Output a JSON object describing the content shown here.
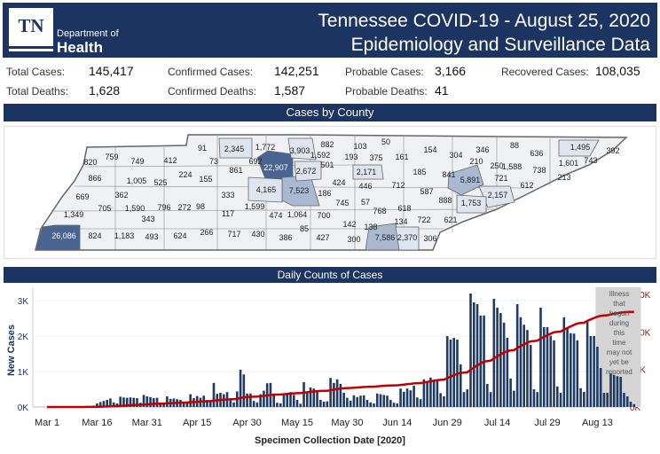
{
  "header": {
    "logo_text": "TN",
    "dept_line1": "Department of",
    "dept_line2": "Health",
    "title": "Tennessee COVID-19 - August 25, 2020",
    "subtitle": "Epidemiology and Surveillance Data"
  },
  "stats": {
    "total_cases_label": "Total Cases:",
    "total_cases": "145,417",
    "confirmed_cases_label": "Confirmed Cases:",
    "confirmed_cases": "142,251",
    "probable_cases_label": "Probable Cases:",
    "probable_cases": "3,166",
    "recovered_cases_label": "Recovered Cases:",
    "recovered_cases": "108,035",
    "total_deaths_label": "Total Deaths:",
    "total_deaths": "1,628",
    "confirmed_deaths_label": "Confirmed Deaths:",
    "confirmed_deaths": "1,587",
    "probable_deaths_label": "Probable Deaths:",
    "probable_deaths": "41"
  },
  "map": {
    "title": "Cases by County",
    "counties": [
      "91",
      "2,345",
      "1,772",
      "3,903",
      "882",
      "820",
      "759",
      "749",
      "412",
      "73",
      "692",
      "22,907",
      "1,592",
      "501",
      "2,672",
      "861",
      "224",
      "155",
      "866",
      "1,005",
      "525",
      "669",
      "362",
      "333",
      "4,165",
      "7,523",
      "186",
      "1,349",
      "705",
      "1,590",
      "796",
      "272",
      "98",
      "1,599",
      "474",
      "1,064",
      "700",
      "117",
      "343",
      "26,086",
      "824",
      "1,183",
      "493",
      "624",
      "266",
      "717",
      "430",
      "386",
      "85",
      "427",
      "103",
      "50",
      "193",
      "375",
      "161",
      "154",
      "304",
      "346",
      "88",
      "210",
      "250",
      "1,588",
      "636",
      "1,495",
      "392",
      "743",
      "1,601",
      "213",
      "738",
      "2,171",
      "185",
      "841",
      "5,891",
      "721",
      "612",
      "424",
      "446",
      "712",
      "587",
      "2,157",
      "888",
      "1,753",
      "745",
      "57",
      "768",
      "618",
      "134",
      "722",
      "621",
      "142",
      "138",
      "300",
      "7,586",
      "2,370",
      "306"
    ]
  },
  "colors": {
    "navy": "#1c3461",
    "bar": "#1f3a64",
    "line": "#c00000",
    "dark_county": "#4a6491",
    "mid_county": "#a9b9d2",
    "light_county": "#dfe5ef",
    "base_county": "#eff1f5"
  },
  "chart_data": {
    "type": "bar+line",
    "title": "Daily Counts of Cases",
    "xlabel": "Specimen Collection Date [2020]",
    "ylabel": "New Cases",
    "x_ticks": [
      "Mar 1",
      "Mar 16",
      "Mar 31",
      "Apr 15",
      "Apr 30",
      "May 15",
      "May 30",
      "Jun 14",
      "Jun 29",
      "Jul 14",
      "Jul 29",
      "Aug 13"
    ],
    "y_ticks": [
      "0K",
      "1K",
      "2K",
      "3K"
    ],
    "y2_ticks": [
      "0K",
      "50K",
      "100K",
      "150K"
    ],
    "ylim": [
      0,
      3200
    ],
    "y2lim": [
      0,
      151000
    ],
    "annotation": "Illness that began during this time may not yet be reported",
    "first_date": "2020-03-01",
    "last_date": "2020-08-24",
    "series": [
      {
        "type": "bar",
        "values": [
          0,
          0,
          0,
          0,
          0,
          1,
          2,
          2,
          3,
          5,
          10,
          20,
          30,
          25,
          40,
          100,
          140,
          170,
          200,
          240,
          130,
          100,
          290,
          270,
          260,
          270,
          260,
          250,
          120,
          340,
          300,
          280,
          250,
          260,
          120,
          100,
          300,
          230,
          240,
          220,
          200,
          100,
          100,
          360,
          250,
          310,
          260,
          320,
          200,
          170,
          680,
          370,
          400,
          360,
          420,
          210,
          130,
          440,
          1050,
          920,
          380,
          380,
          170,
          130,
          360,
          460,
          670,
          680,
          380,
          120,
          100,
          380,
          390,
          420,
          340,
          200,
          90,
          700,
          420,
          550,
          520,
          460,
          200,
          150,
          160,
          820,
          680,
          780,
          650,
          400,
          260,
          180,
          330,
          280,
          320,
          330,
          200,
          130,
          100,
          380,
          360,
          340,
          320,
          200,
          120,
          100,
          520,
          430,
          520,
          470,
          600,
          270,
          220,
          780,
          700,
          830,
          770,
          770,
          390,
          300,
          2000,
          1900,
          1950,
          1900,
          1200,
          420,
          500,
          3200,
          2950,
          2900,
          2580,
          2580,
          650,
          420,
          3050,
          2800,
          2650,
          2380,
          1950,
          800,
          460,
          2900,
          2530,
          2320,
          2170,
          1750,
          500,
          420,
          2800,
          2250,
          2250,
          2010,
          1880,
          580,
          400,
          2530,
          2230,
          2080,
          2070,
          1880,
          530,
          430,
          2400,
          2000,
          2000,
          1700,
          1100,
          400,
          400,
          950,
          900,
          870,
          850,
          400,
          300,
          150,
          80
        ]
      },
      {
        "type": "line",
        "cumulative": true
      }
    ]
  }
}
